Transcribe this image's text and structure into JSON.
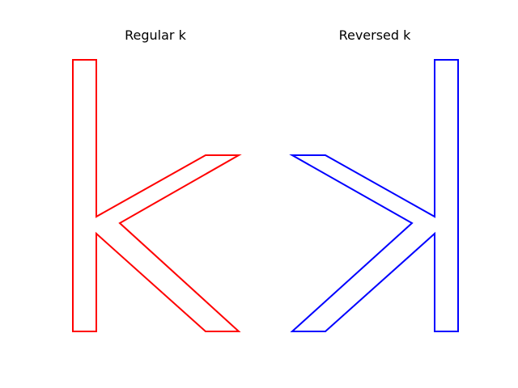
{
  "panels": [
    {
      "title": "Regular k",
      "stroke_color": "#ff0000",
      "orientation": "normal"
    },
    {
      "title": "Reversed k",
      "stroke_color": "#0000ff",
      "orientation": "mirrored"
    }
  ]
}
